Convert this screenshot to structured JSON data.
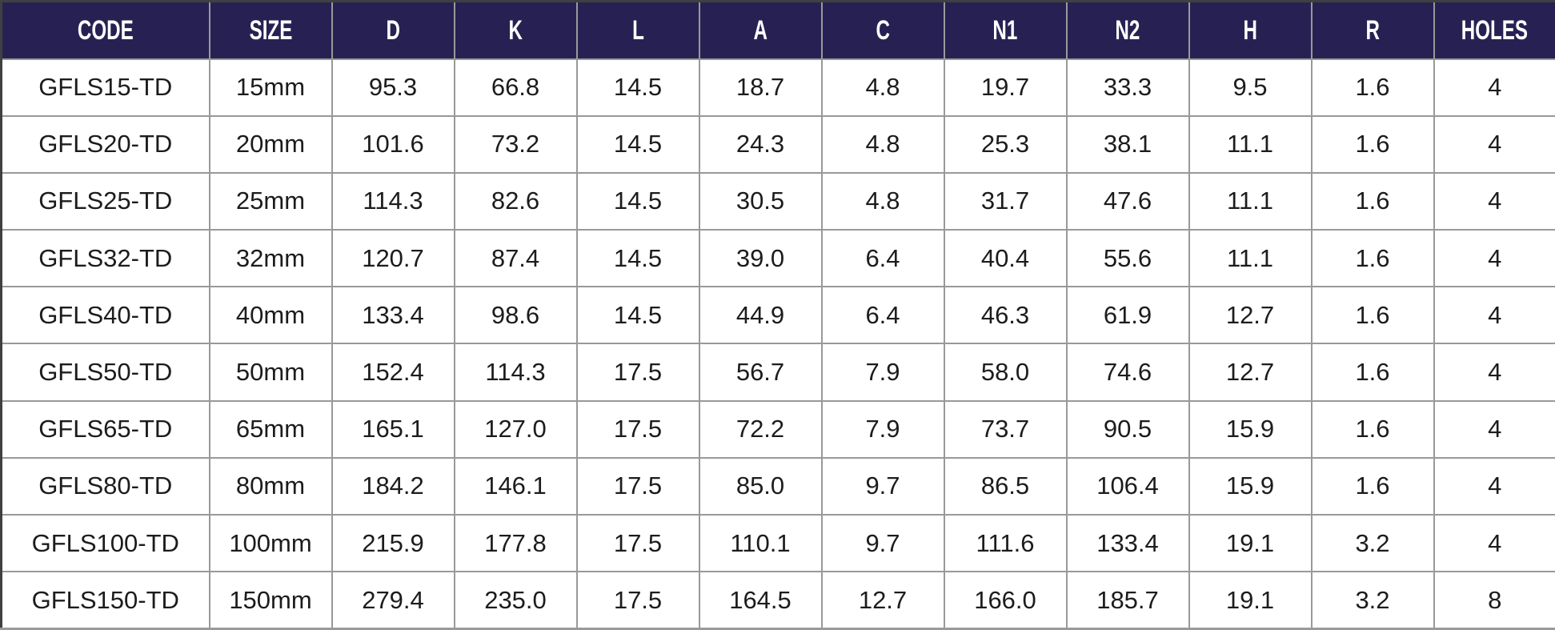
{
  "table": {
    "columns": [
      "CODE",
      "SIZE",
      "D",
      "K",
      "L",
      "A",
      "C",
      "N1",
      "N2",
      "H",
      "R",
      "HOLES"
    ],
    "rows": [
      [
        "GFLS15-TD",
        "15mm",
        "95.3",
        "66.8",
        "14.5",
        "18.7",
        "4.8",
        "19.7",
        "33.3",
        "9.5",
        "1.6",
        "4"
      ],
      [
        "GFLS20-TD",
        "20mm",
        "101.6",
        "73.2",
        "14.5",
        "24.3",
        "4.8",
        "25.3",
        "38.1",
        "11.1",
        "1.6",
        "4"
      ],
      [
        "GFLS25-TD",
        "25mm",
        "114.3",
        "82.6",
        "14.5",
        "30.5",
        "4.8",
        "31.7",
        "47.6",
        "11.1",
        "1.6",
        "4"
      ],
      [
        "GFLS32-TD",
        "32mm",
        "120.7",
        "87.4",
        "14.5",
        "39.0",
        "6.4",
        "40.4",
        "55.6",
        "11.1",
        "1.6",
        "4"
      ],
      [
        "GFLS40-TD",
        "40mm",
        "133.4",
        "98.6",
        "14.5",
        "44.9",
        "6.4",
        "46.3",
        "61.9",
        "12.7",
        "1.6",
        "4"
      ],
      [
        "GFLS50-TD",
        "50mm",
        "152.4",
        "114.3",
        "17.5",
        "56.7",
        "7.9",
        "58.0",
        "74.6",
        "12.7",
        "1.6",
        "4"
      ],
      [
        "GFLS65-TD",
        "65mm",
        "165.1",
        "127.0",
        "17.5",
        "72.2",
        "7.9",
        "73.7",
        "90.5",
        "15.9",
        "1.6",
        "4"
      ],
      [
        "GFLS80-TD",
        "80mm",
        "184.2",
        "146.1",
        "17.5",
        "85.0",
        "9.7",
        "86.5",
        "106.4",
        "15.9",
        "1.6",
        "4"
      ],
      [
        "GFLS100-TD",
        "100mm",
        "215.9",
        "177.8",
        "17.5",
        "110.1",
        "9.7",
        "111.6",
        "133.4",
        "19.1",
        "3.2",
        "4"
      ],
      [
        "GFLS150-TD",
        "150mm",
        "279.4",
        "235.0",
        "17.5",
        "164.5",
        "12.7",
        "166.0",
        "185.7",
        "19.1",
        "3.2",
        "8"
      ]
    ]
  },
  "colors": {
    "header_bg": "#272153",
    "header_text": "#ffffff",
    "cell_bg": "#ffffff",
    "cell_text": "#1c1c1c",
    "grid_border": "#999999"
  }
}
